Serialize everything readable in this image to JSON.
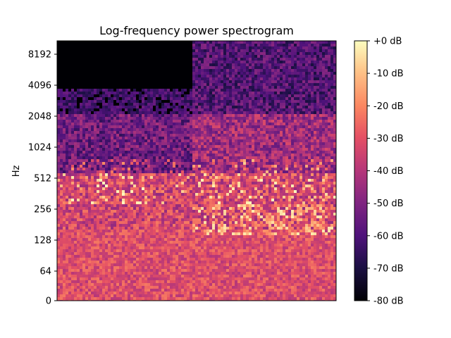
{
  "chart_data": {
    "type": "heatmap",
    "title": "Log-frequency power spectrogram",
    "xlabel": "",
    "ylabel": "Hz",
    "y_scale": "log2 (with linear segment below 64 Hz)",
    "y_ticks": [
      {
        "value": 0,
        "label": "0"
      },
      {
        "value": 64,
        "label": "64"
      },
      {
        "value": 128,
        "label": "128"
      },
      {
        "value": 256,
        "label": "256"
      },
      {
        "value": 512,
        "label": "512"
      },
      {
        "value": 1024,
        "label": "1024"
      },
      {
        "value": 2048,
        "label": "2048"
      },
      {
        "value": 4096,
        "label": "4096"
      },
      {
        "value": 8192,
        "label": "8192"
      }
    ],
    "ylim": [
      0,
      11025
    ],
    "x_ticks": [],
    "colormap": "magma",
    "colorbar": {
      "range_db": [
        -80,
        0
      ],
      "ticks": [
        {
          "value": 0,
          "label": "+0 dB"
        },
        {
          "value": -10,
          "label": "-10 dB"
        },
        {
          "value": -20,
          "label": "-20 dB"
        },
        {
          "value": -30,
          "label": "-30 dB"
        },
        {
          "value": -40,
          "label": "-40 dB"
        },
        {
          "value": -50,
          "label": "-50 dB"
        },
        {
          "value": -60,
          "label": "-60 dB"
        },
        {
          "value": -70,
          "label": "-70 dB"
        },
        {
          "value": -80,
          "label": "-80 dB"
        }
      ]
    },
    "colors": [
      "#000004",
      "#3b0f70",
      "#8c2981",
      "#de4968",
      "#fe9f6d",
      "#fcfdbf"
    ]
  }
}
